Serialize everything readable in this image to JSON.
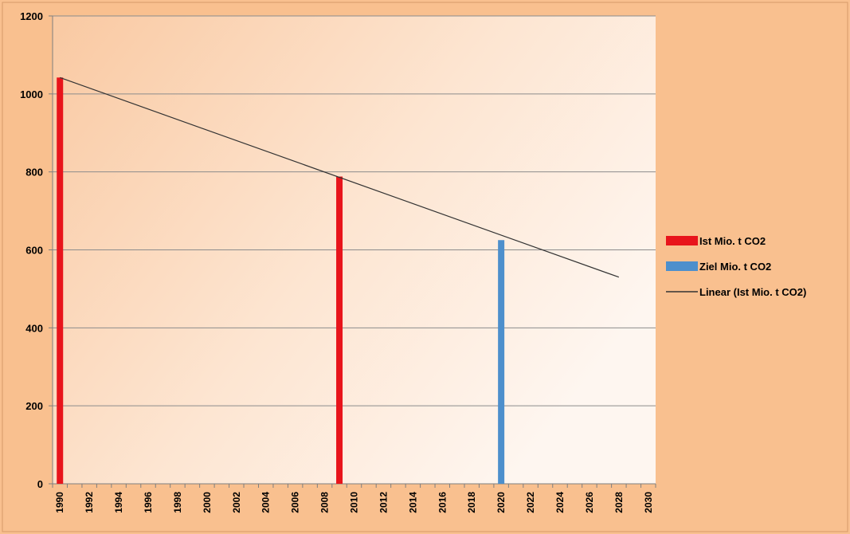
{
  "chart_data": {
    "type": "bar",
    "x_range": [
      1990,
      2030
    ],
    "x_ticks": [
      1990,
      1992,
      1994,
      1996,
      1998,
      2000,
      2002,
      2004,
      2006,
      2008,
      2010,
      2012,
      2014,
      2016,
      2018,
      2020,
      2022,
      2024,
      2026,
      2028,
      2030
    ],
    "y_range": [
      0,
      1200
    ],
    "y_ticks": [
      0,
      200,
      400,
      600,
      800,
      1000,
      1200
    ],
    "grid": true,
    "legend_position": "right",
    "series": [
      {
        "name": "Ist Mio. t CO2",
        "type": "bar",
        "color": "#e8141b",
        "points": [
          {
            "x": 1990,
            "y": 1042
          },
          {
            "x": 2009,
            "y": 788
          }
        ]
      },
      {
        "name": "Ziel Mio. t CO2",
        "type": "bar",
        "color": "#4d8fcc",
        "points": [
          {
            "x": 2020,
            "y": 625
          }
        ]
      },
      {
        "name": "Linear (Ist Mio. t CO2)",
        "type": "line",
        "color": "#333333",
        "points": [
          {
            "x": 1990,
            "y": 1042
          },
          {
            "x": 2028,
            "y": 530
          }
        ]
      }
    ]
  }
}
